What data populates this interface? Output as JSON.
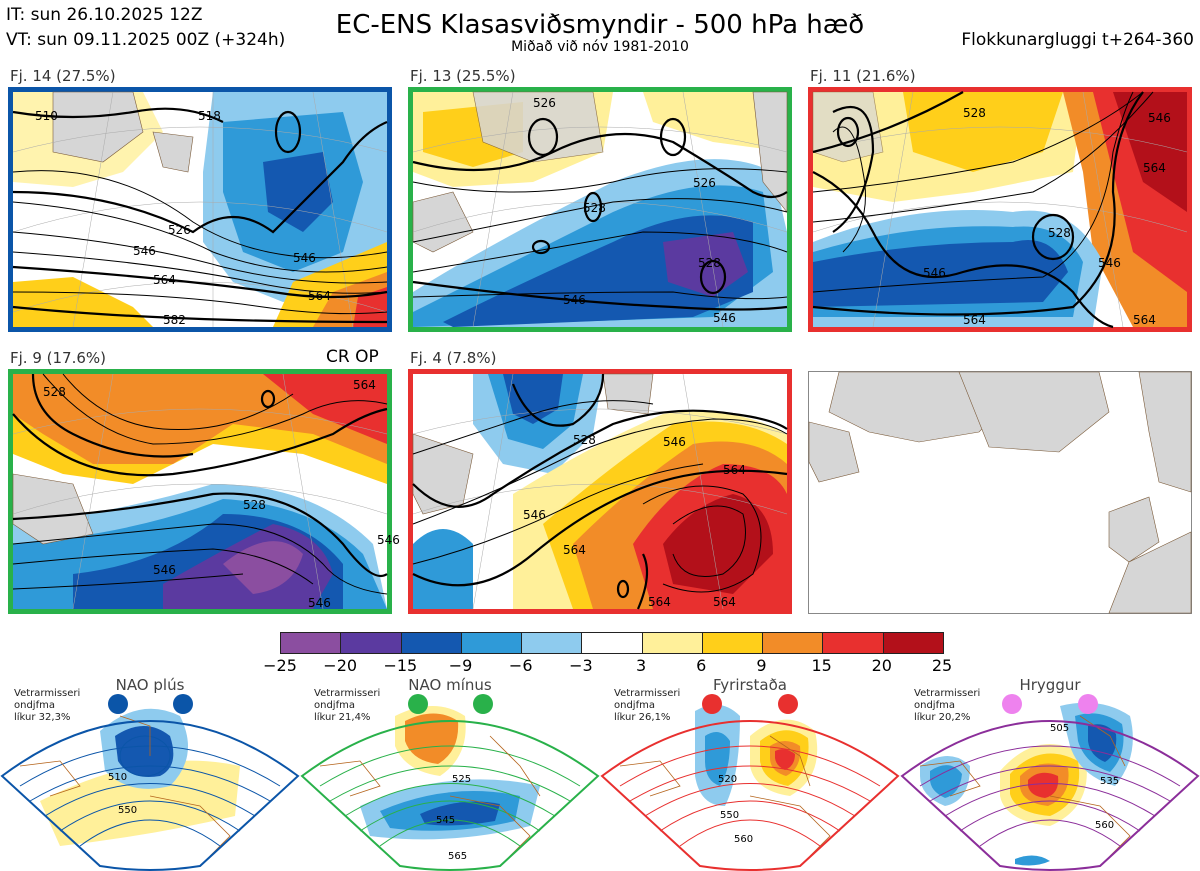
{
  "header": {
    "initial_time": "IT: sun 26.10.2025 12Z",
    "valid_time": "VT: sun 09.11.2025 00Z  (+324h)",
    "title": "EC-ENS Klasasviðsmyndir - 500 hPa hæð",
    "subtitle": "Miðað við nóv 1981-2010",
    "window": "Flokkunargluggi t+264-360"
  },
  "clusters": [
    {
      "label": "Fj. 14 (27.5%)",
      "frame_color": "#0b55a8",
      "contours": [
        "510",
        "518",
        "526",
        "546",
        "546",
        "564",
        "564",
        "582"
      ]
    },
    {
      "label": "Fj. 13 (25.5%)",
      "frame_color": "#29b14a",
      "contours": [
        "526",
        "526",
        "528",
        "528",
        "546",
        "546"
      ]
    },
    {
      "label": "Fj. 11 (21.6%)",
      "frame_color": "#e8302f",
      "contours": [
        "546",
        "528",
        "528",
        "546",
        "546",
        "564",
        "564",
        "564"
      ]
    },
    {
      "label": "Fj. 9 (17.6%)",
      "frame_color": "#29b14a",
      "contours": [
        "528",
        "528",
        "546",
        "546",
        "546",
        "564"
      ]
    },
    {
      "label": "Fj. 4 (7.8%)",
      "frame_color": "#e8302f",
      "contours": [
        "528",
        "546",
        "546",
        "564",
        "564",
        "564",
        "564"
      ]
    }
  ],
  "control_label": "CR OP",
  "colorbar": {
    "colors": [
      "#8b4ea0",
      "#5b3aa0",
      "#1458b0",
      "#2f9ad8",
      "#8ecbee",
      "#ffffff",
      "#fff09a",
      "#ffcf1a",
      "#f28c28",
      "#e8302f",
      "#b3101a"
    ],
    "ticks": [
      "−25",
      "−20",
      "−15",
      "−9",
      "−6",
      "−3",
      "3",
      "6",
      "9",
      "15",
      "20",
      "25"
    ]
  },
  "regimes": [
    {
      "title": "NAO plús",
      "info": [
        "Vetrarmisseri",
        "ondjfma",
        "líkur 32,3%"
      ],
      "frame_color": "#0b55a8",
      "dot_color": "#0b55a8",
      "contours": [
        "510",
        "550"
      ]
    },
    {
      "title": "NAO mínus",
      "info": [
        "Vetrarmisseri",
        "ondjfma",
        "líkur 21,4%"
      ],
      "frame_color": "#29b14a",
      "dot_color": "#29b14a",
      "contours": [
        "525",
        "545",
        "565"
      ]
    },
    {
      "title": "Fyrirstaða",
      "info": [
        "Vetrarmisseri",
        "ondjfma",
        "líkur 26,1%"
      ],
      "frame_color": "#e8302f",
      "dot_color": "#e8302f",
      "contours": [
        "520",
        "550",
        "560"
      ]
    },
    {
      "title": "Hryggur",
      "info": [
        "Vetrarmisseri",
        "ondjfma",
        "líkur 20,2%"
      ],
      "frame_color": "#8b2e9a",
      "dot_color": "#ee82ee",
      "contours": [
        "505",
        "535",
        "560"
      ]
    }
  ]
}
